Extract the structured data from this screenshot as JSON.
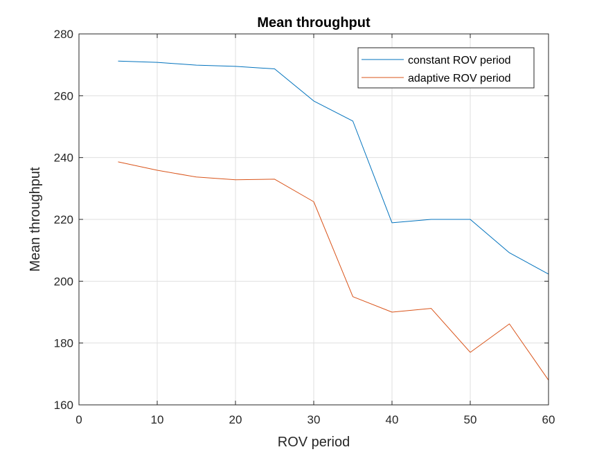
{
  "chart_data": {
    "type": "line",
    "title": "Mean throughput",
    "xlabel": "ROV period",
    "ylabel": "Mean throughput",
    "xlim": [
      0,
      60
    ],
    "ylim": [
      160,
      280
    ],
    "xticks": [
      0,
      10,
      20,
      30,
      40,
      50,
      60
    ],
    "yticks": [
      160,
      180,
      200,
      220,
      240,
      260,
      280
    ],
    "grid": true,
    "legend_position": "top-right",
    "x": [
      5,
      10,
      15,
      20,
      25,
      30,
      35,
      40,
      45,
      50,
      55,
      60
    ],
    "series": [
      {
        "name": "constant ROV period",
        "color": "#0072BD",
        "values": [
          271.2,
          270.8,
          269.9,
          269.5,
          268.7,
          258.3,
          251.8,
          218.9,
          220.0,
          220.0,
          209.2,
          202.3
        ]
      },
      {
        "name": "adaptive ROV period",
        "color": "#D95319",
        "values": [
          238.6,
          235.9,
          233.7,
          232.8,
          233.0,
          225.7,
          195.0,
          190.0,
          191.2,
          177.0,
          186.2,
          168.0
        ]
      }
    ]
  }
}
